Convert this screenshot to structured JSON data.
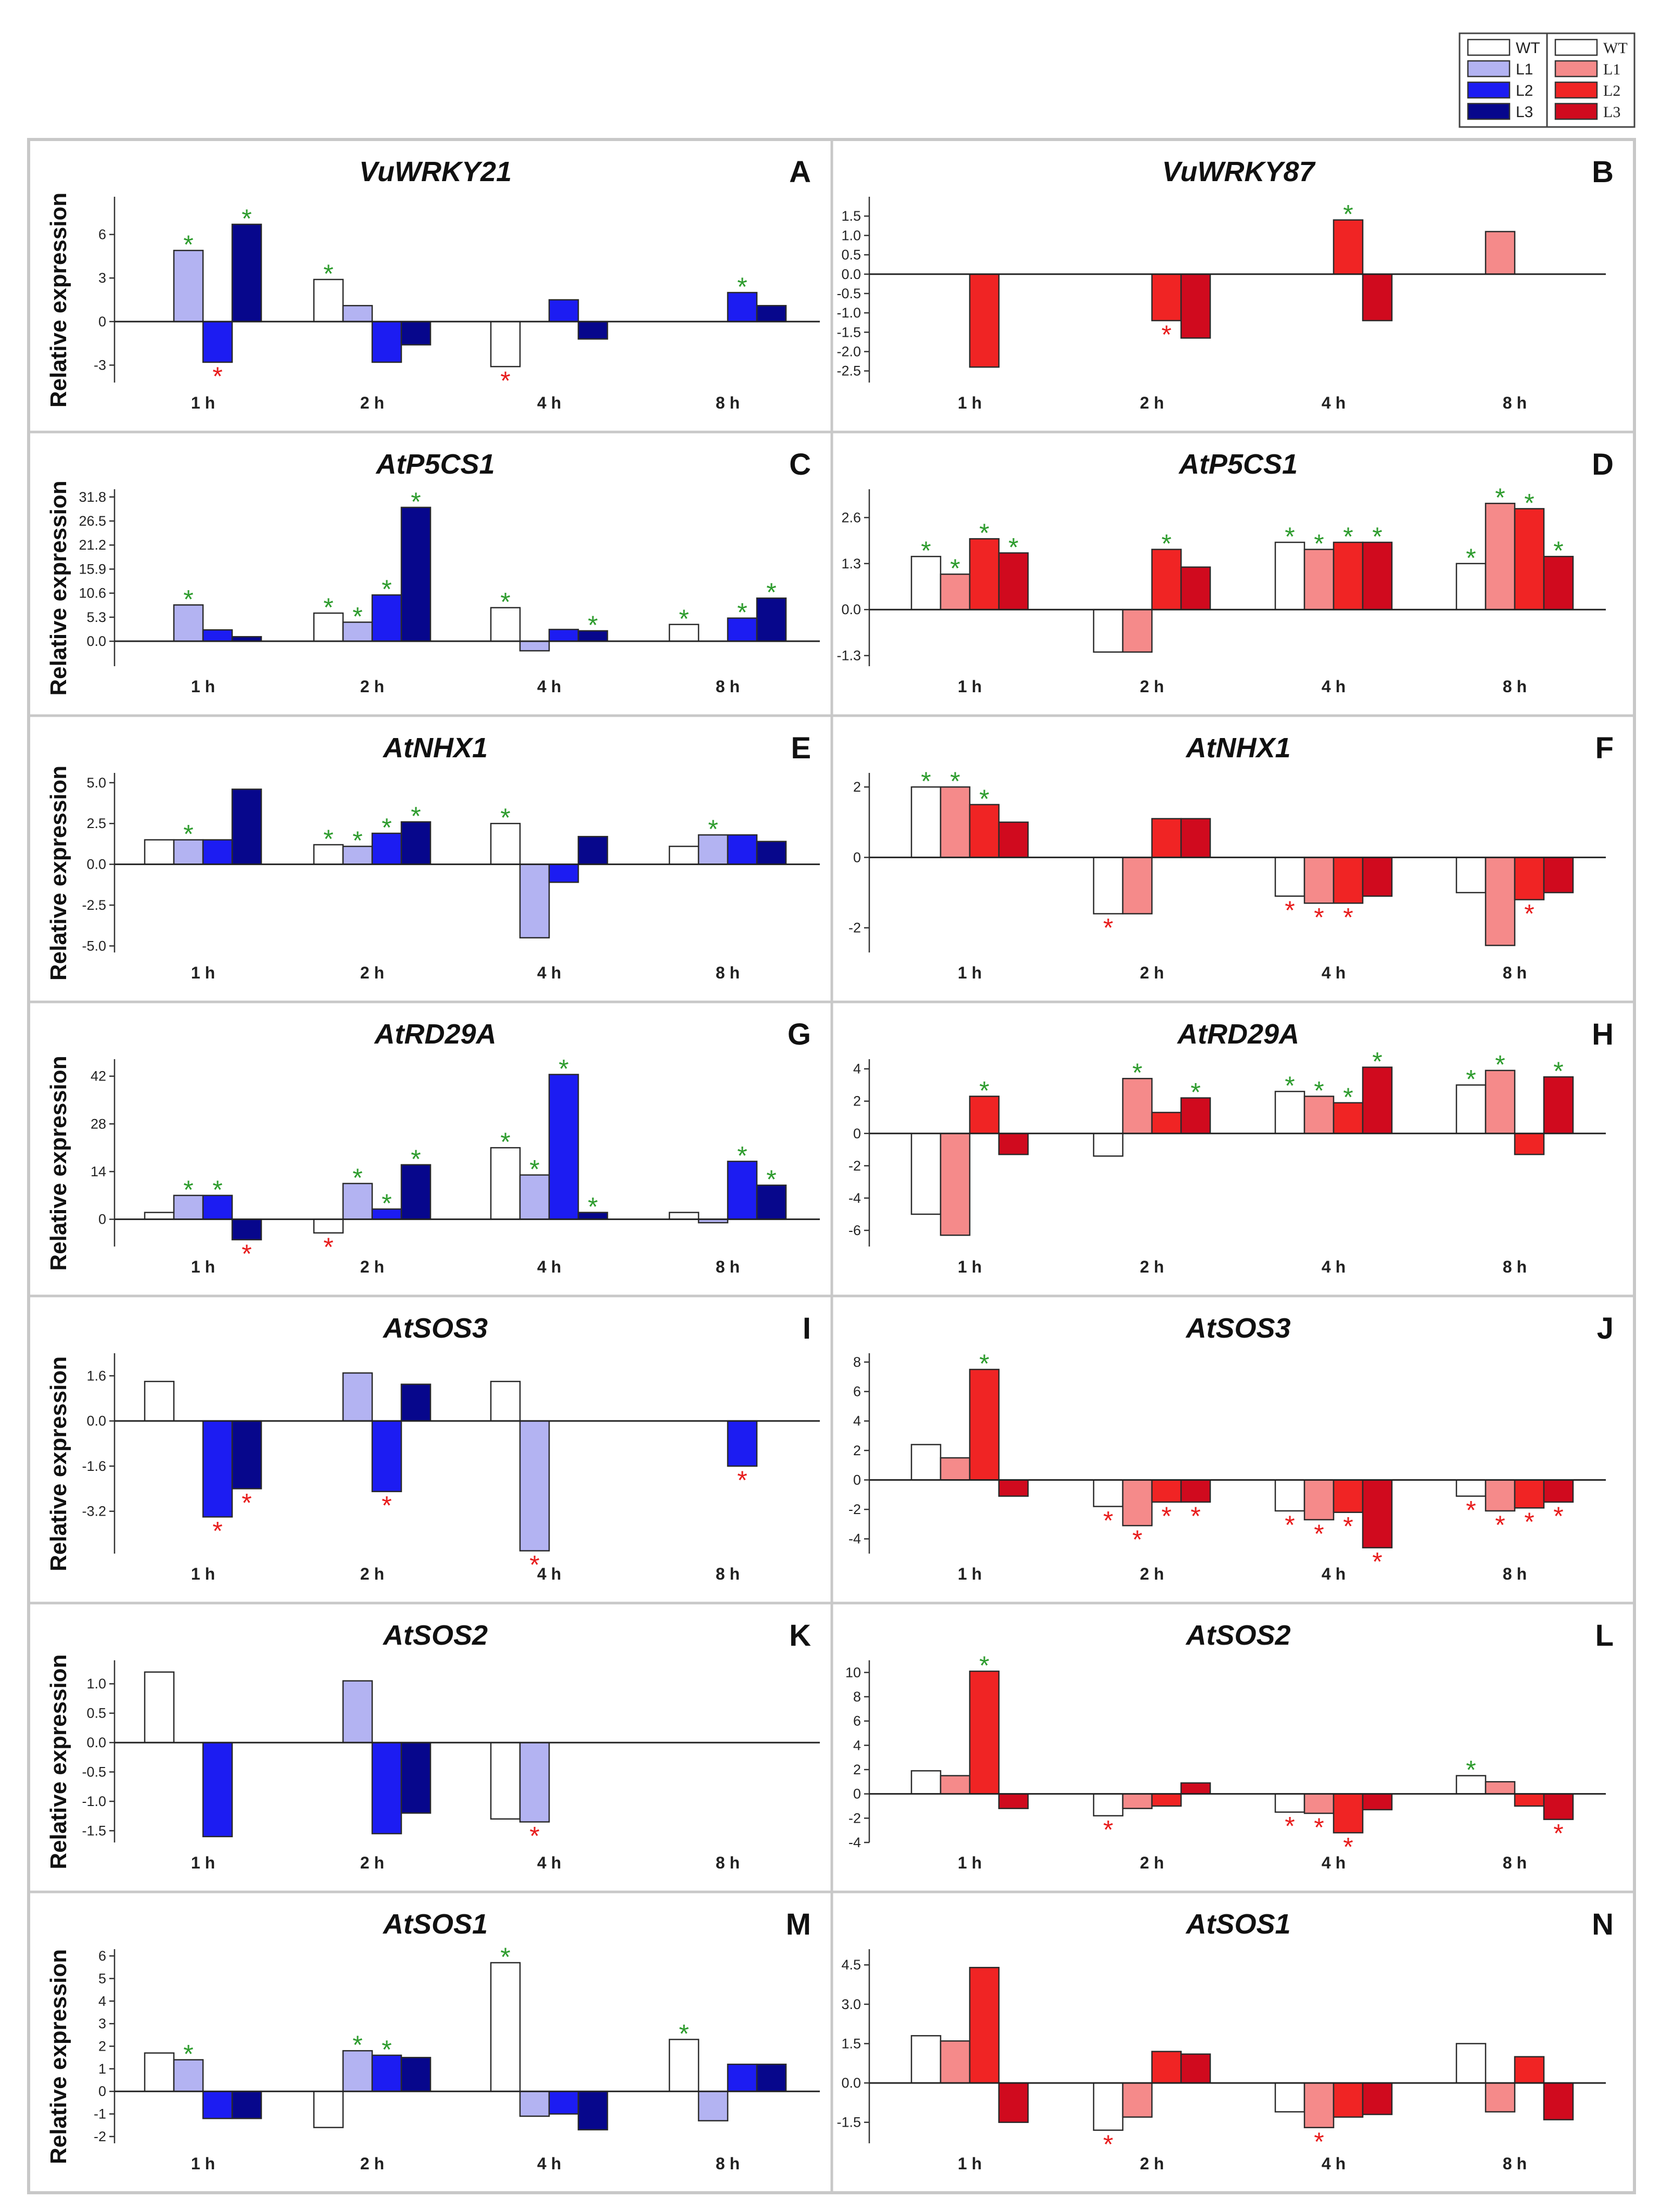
{
  "legends": {
    "blue": {
      "entries": [
        "WT",
        "L1",
        "L2",
        "L3"
      ],
      "colors": [
        "#ffffff",
        "#b3b3f2",
        "#1c1cf2",
        "#07078c"
      ]
    },
    "red": {
      "entries": [
        "WT",
        "L1",
        "L2",
        "L3"
      ],
      "colors": [
        "#ffffff",
        "#f58a8a",
        "#f02424",
        "#d00a1e"
      ]
    }
  },
  "y_axis_label": "Relative expression",
  "star_colors": {
    "green": "#2e9c2e",
    "red": "#e81c1c"
  },
  "chart_data": [
    {
      "id": "A",
      "type": "bar",
      "title": "VuWRKY21",
      "letter": "A",
      "palette": "blue",
      "side": "left",
      "categories": [
        "1 h",
        "2 h",
        "4 h",
        "8 h"
      ],
      "series_names": [
        "WT",
        "L1",
        "L2",
        "L3"
      ],
      "values": [
        [
          0,
          4.9,
          -2.8,
          6.7
        ],
        [
          2.9,
          1.1,
          -2.8,
          -1.6
        ],
        [
          -3.1,
          0,
          1.5,
          -1.2
        ],
        [
          0,
          0,
          2.0,
          1.1
        ]
      ],
      "stars": [
        [
          null,
          "green",
          "red",
          "green"
        ],
        [
          "green",
          null,
          null,
          null
        ],
        [
          "red",
          null,
          null,
          null
        ],
        [
          null,
          null,
          "green",
          null
        ]
      ],
      "yticks": [
        -3,
        0,
        3,
        6
      ],
      "yticklabels": [
        "-3",
        "0",
        "3",
        "6"
      ],
      "ylim": [
        -4.2,
        8.6
      ],
      "show_ylabel": true
    },
    {
      "id": "B",
      "type": "bar",
      "title": "VuWRKY87",
      "letter": "B",
      "palette": "red",
      "side": "right",
      "categories": [
        "1 h",
        "2 h",
        "4 h",
        "8 h"
      ],
      "series_names": [
        "WT",
        "L1",
        "L2",
        "L3"
      ],
      "values": [
        [
          0,
          0,
          -2.4,
          0
        ],
        [
          0,
          0,
          -1.2,
          -1.65
        ],
        [
          0,
          0,
          1.4,
          -1.2
        ],
        [
          0,
          1.1,
          0,
          0
        ]
      ],
      "stars": [
        [
          null,
          null,
          null,
          null
        ],
        [
          null,
          null,
          "red",
          null
        ],
        [
          null,
          null,
          "green",
          null
        ],
        [
          null,
          null,
          null,
          null
        ]
      ],
      "yticks": [
        -2.5,
        -2.0,
        -1.5,
        -1.0,
        -0.5,
        0.0,
        0.5,
        1.0,
        1.5
      ],
      "yticklabels": [
        "-2.5",
        "-2.0",
        "-1.5",
        "-1.0",
        "-0.5",
        "0.0",
        "0.5",
        "1.0",
        "1.5"
      ],
      "ylim": [
        -2.8,
        2.0
      ],
      "show_ylabel": false
    },
    {
      "id": "C",
      "type": "bar",
      "title": "AtP5CS1",
      "letter": "C",
      "palette": "blue",
      "side": "left",
      "categories": [
        "1 h",
        "2 h",
        "4 h",
        "8 h"
      ],
      "series_names": [
        "WT",
        "L1",
        "L2",
        "L3"
      ],
      "values": [
        [
          0,
          8.0,
          2.5,
          1.0
        ],
        [
          6.2,
          4.2,
          10.2,
          29.5
        ],
        [
          7.4,
          -2.1,
          2.6,
          2.3
        ],
        [
          3.7,
          0,
          5.1,
          9.5
        ]
      ],
      "stars": [
        [
          null,
          "green",
          null,
          null
        ],
        [
          "green",
          "green",
          "green",
          "green"
        ],
        [
          "green",
          null,
          null,
          "green"
        ],
        [
          "green",
          null,
          "green",
          "green"
        ]
      ],
      "yticks": [
        0.0,
        5.3,
        10.6,
        15.9,
        21.2,
        26.5,
        31.8
      ],
      "yticklabels": [
        "0.0",
        "5.3",
        "10.6",
        "15.9",
        "21.2",
        "26.5",
        "31.8"
      ],
      "ylim": [
        -5.5,
        33.5
      ],
      "show_ylabel": true
    },
    {
      "id": "D",
      "type": "bar",
      "title": "AtP5CS1",
      "letter": "D",
      "palette": "red",
      "side": "right",
      "categories": [
        "1 h",
        "2 h",
        "4 h",
        "8 h"
      ],
      "series_names": [
        "WT",
        "L1",
        "L2",
        "L3"
      ],
      "values": [
        [
          1.5,
          1.0,
          2.0,
          1.6
        ],
        [
          -1.2,
          -1.2,
          1.7,
          1.2
        ],
        [
          1.9,
          1.7,
          1.9,
          1.9
        ],
        [
          1.3,
          3.0,
          2.85,
          1.5
        ]
      ],
      "stars": [
        [
          "green",
          "green",
          "green",
          "green"
        ],
        [
          null,
          null,
          "green",
          null
        ],
        [
          "green",
          "green",
          "green",
          "green"
        ],
        [
          "green",
          "green",
          "green",
          "green"
        ]
      ],
      "yticks": [
        -1.3,
        0.0,
        1.3,
        2.6
      ],
      "yticklabels": [
        "-1.3",
        "0.0",
        "1.3",
        "2.6"
      ],
      "ylim": [
        -1.6,
        3.4
      ],
      "show_ylabel": false
    },
    {
      "id": "E",
      "type": "bar",
      "title": "AtNHX1",
      "letter": "E",
      "palette": "blue",
      "side": "left",
      "categories": [
        "1 h",
        "2 h",
        "4 h",
        "8 h"
      ],
      "series_names": [
        "WT",
        "L1",
        "L2",
        "L3"
      ],
      "values": [
        [
          1.5,
          1.5,
          1.5,
          4.6
        ],
        [
          1.2,
          1.1,
          1.9,
          2.6
        ],
        [
          2.5,
          -4.5,
          -1.1,
          1.7
        ],
        [
          1.1,
          1.8,
          1.8,
          1.4
        ]
      ],
      "stars": [
        [
          null,
          "green",
          null,
          null
        ],
        [
          "green",
          "green",
          "green",
          "green"
        ],
        [
          "green",
          null,
          null,
          null
        ],
        [
          null,
          "green",
          null,
          null
        ]
      ],
      "yticks": [
        -5.0,
        -2.5,
        0.0,
        2.5,
        5.0
      ],
      "yticklabels": [
        "-5.0",
        "-2.5",
        "0.0",
        "2.5",
        "5.0"
      ],
      "ylim": [
        -5.4,
        5.6
      ],
      "show_ylabel": true
    },
    {
      "id": "F",
      "type": "bar",
      "title": "AtNHX1",
      "letter": "F",
      "palette": "red",
      "side": "right",
      "categories": [
        "1 h",
        "2 h",
        "4 h",
        "8 h"
      ],
      "series_names": [
        "WT",
        "L1",
        "L2",
        "L3"
      ],
      "values": [
        [
          2.0,
          2.0,
          1.5,
          1.0
        ],
        [
          -1.6,
          -1.6,
          1.1,
          1.1
        ],
        [
          -1.1,
          -1.3,
          -1.3,
          -1.1
        ],
        [
          -1.0,
          -2.5,
          -1.2,
          -1.0
        ]
      ],
      "stars": [
        [
          "green",
          "green",
          "green",
          null
        ],
        [
          "red",
          null,
          null,
          null
        ],
        [
          "red",
          "red",
          "red",
          null
        ],
        [
          null,
          null,
          "red",
          null
        ]
      ],
      "yticks": [
        -2,
        0,
        2
      ],
      "yticklabels": [
        "-2",
        "0",
        "2"
      ],
      "ylim": [
        -2.7,
        2.4
      ],
      "show_ylabel": false
    },
    {
      "id": "G",
      "type": "bar",
      "title": "AtRD29A",
      "letter": "G",
      "palette": "blue",
      "side": "left",
      "categories": [
        "1 h",
        "2 h",
        "4 h",
        "8 h"
      ],
      "series_names": [
        "WT",
        "L1",
        "L2",
        "L3"
      ],
      "values": [
        [
          2.0,
          7.0,
          7.0,
          -6.0
        ],
        [
          -4.0,
          10.5,
          3.0,
          16.0
        ],
        [
          21.0,
          13.0,
          42.5,
          2.0
        ],
        [
          2.0,
          -1.0,
          17.0,
          10.0
        ]
      ],
      "stars": [
        [
          null,
          "green",
          "green",
          "red"
        ],
        [
          "red",
          "green",
          "green",
          "green"
        ],
        [
          "green",
          "green",
          "green",
          "green"
        ],
        [
          null,
          null,
          "green",
          "green"
        ]
      ],
      "yticks": [
        0,
        14,
        28,
        42
      ],
      "yticklabels": [
        "0",
        "14",
        "28",
        "42"
      ],
      "ylim": [
        -8,
        47
      ],
      "show_ylabel": true
    },
    {
      "id": "H",
      "type": "bar",
      "title": "AtRD29A",
      "letter": "H",
      "palette": "red",
      "side": "right",
      "categories": [
        "1 h",
        "2 h",
        "4 h",
        "8 h"
      ],
      "series_names": [
        "WT",
        "L1",
        "L2",
        "L3"
      ],
      "values": [
        [
          -5.0,
          -6.3,
          2.3,
          -1.3
        ],
        [
          -1.4,
          3.4,
          1.3,
          2.2
        ],
        [
          2.6,
          2.3,
          1.9,
          4.1
        ],
        [
          3.0,
          3.9,
          -1.3,
          3.5
        ]
      ],
      "stars": [
        [
          null,
          null,
          "green",
          null
        ],
        [
          null,
          "green",
          null,
          "green"
        ],
        [
          "green",
          "green",
          "green",
          "green"
        ],
        [
          "green",
          "green",
          null,
          "green"
        ]
      ],
      "yticks": [
        -6,
        -4,
        -2,
        0,
        2,
        4
      ],
      "yticklabels": [
        "-6",
        "-4",
        "-2",
        "0",
        "2",
        "4"
      ],
      "ylim": [
        -7.0,
        4.6
      ],
      "show_ylabel": false
    },
    {
      "id": "I",
      "type": "bar",
      "title": "AtSOS3",
      "letter": "I",
      "palette": "blue",
      "side": "left",
      "categories": [
        "1 h",
        "2 h",
        "4 h",
        "8 h"
      ],
      "series_names": [
        "WT",
        "L1",
        "L2",
        "L3"
      ],
      "values": [
        [
          1.4,
          0,
          -3.4,
          -2.4
        ],
        [
          0,
          1.7,
          -2.5,
          1.3
        ],
        [
          1.4,
          -4.6,
          0,
          0
        ],
        [
          0,
          0,
          -1.6,
          0
        ]
      ],
      "stars": [
        [
          null,
          null,
          "red",
          "red"
        ],
        [
          null,
          null,
          "red",
          null
        ],
        [
          null,
          "red",
          null,
          null
        ],
        [
          null,
          null,
          "red",
          null
        ]
      ],
      "yticks": [
        -3.2,
        -1.6,
        0.0,
        1.6
      ],
      "yticklabels": [
        "-3.2",
        "-1.6",
        "0.0",
        "1.6"
      ],
      "ylim": [
        -4.7,
        2.4
      ],
      "show_ylabel": true
    },
    {
      "id": "J",
      "type": "bar",
      "title": "AtSOS3",
      "letter": "J",
      "palette": "red",
      "side": "right",
      "categories": [
        "1 h",
        "2 h",
        "4 h",
        "8 h"
      ],
      "series_names": [
        "WT",
        "L1",
        "L2",
        "L3"
      ],
      "values": [
        [
          2.4,
          1.5,
          7.5,
          -1.1
        ],
        [
          -1.8,
          -3.1,
          -1.5,
          -1.5
        ],
        [
          -2.1,
          -2.7,
          -2.2,
          -4.6
        ],
        [
          -1.1,
          -2.1,
          -1.9,
          -1.5
        ]
      ],
      "stars": [
        [
          null,
          null,
          "green",
          null
        ],
        [
          "red",
          "red",
          "red",
          "red"
        ],
        [
          "red",
          "red",
          "red",
          "red"
        ],
        [
          "red",
          "red",
          "red",
          "red"
        ]
      ],
      "yticks": [
        -4,
        -2,
        0,
        2,
        4,
        6,
        8
      ],
      "yticklabels": [
        "-4",
        "-2",
        "0",
        "2",
        "4",
        "6",
        "8"
      ],
      "ylim": [
        -5.0,
        8.6
      ],
      "show_ylabel": false
    },
    {
      "id": "K",
      "type": "bar",
      "title": "AtSOS2",
      "letter": "K",
      "palette": "blue",
      "side": "left",
      "categories": [
        "1 h",
        "2 h",
        "4 h",
        "8 h"
      ],
      "series_names": [
        "WT",
        "L1",
        "L2",
        "L3"
      ],
      "values": [
        [
          1.2,
          0,
          -1.6,
          0
        ],
        [
          0,
          1.05,
          -1.55,
          -1.2
        ],
        [
          -1.3,
          -1.35,
          0,
          0
        ],
        [
          0,
          0,
          0,
          0
        ]
      ],
      "stars": [
        [
          null,
          null,
          null,
          null
        ],
        [
          null,
          null,
          null,
          null
        ],
        [
          null,
          "red",
          null,
          null
        ],
        [
          null,
          null,
          null,
          null
        ]
      ],
      "yticks": [
        -1.5,
        -1.0,
        -0.5,
        0.0,
        0.5,
        1.0
      ],
      "yticklabels": [
        "-1.5",
        "-1.0",
        "-0.5",
        "0.0",
        "0.5",
        "1.0"
      ],
      "ylim": [
        -1.7,
        1.4
      ],
      "show_ylabel": true
    },
    {
      "id": "L",
      "type": "bar",
      "title": "AtSOS2",
      "letter": "L",
      "palette": "red",
      "side": "right",
      "categories": [
        "1 h",
        "2 h",
        "4 h",
        "8 h"
      ],
      "series_names": [
        "WT",
        "L1",
        "L2",
        "L3"
      ],
      "values": [
        [
          1.9,
          1.5,
          10.1,
          -1.2
        ],
        [
          -1.8,
          -1.2,
          -1.0,
          0.9
        ],
        [
          -1.5,
          -1.6,
          -3.2,
          -1.3
        ],
        [
          1.5,
          1.0,
          -1.0,
          -2.1
        ]
      ],
      "stars": [
        [
          null,
          null,
          "green",
          null
        ],
        [
          "red",
          null,
          null,
          null
        ],
        [
          "red",
          "red",
          "red",
          null
        ],
        [
          "green",
          null,
          null,
          "red"
        ]
      ],
      "yticks": [
        -4,
        -2,
        0,
        2,
        4,
        6,
        8,
        10
      ],
      "yticklabels": [
        "-4",
        "-2",
        "0",
        "2",
        "4",
        "6",
        "8",
        "10"
      ],
      "ylim": [
        -4.0,
        11.0
      ],
      "show_ylabel": false
    },
    {
      "id": "M",
      "type": "bar",
      "title": "AtSOS1",
      "letter": "M",
      "palette": "blue",
      "side": "left",
      "categories": [
        "1 h",
        "2 h",
        "4 h",
        "8 h"
      ],
      "series_names": [
        "WT",
        "L1",
        "L2",
        "L3"
      ],
      "values": [
        [
          1.7,
          1.4,
          -1.2,
          -1.2
        ],
        [
          -1.6,
          1.8,
          1.6,
          1.5
        ],
        [
          5.7,
          -1.1,
          -1.0,
          -1.7
        ],
        [
          2.3,
          -1.3,
          1.2,
          1.2
        ]
      ],
      "stars": [
        [
          null,
          "green",
          null,
          null
        ],
        [
          null,
          "green",
          "green",
          null
        ],
        [
          "green",
          null,
          null,
          null
        ],
        [
          "green",
          null,
          null,
          null
        ]
      ],
      "yticks": [
        -2,
        -1,
        0,
        1,
        2,
        3,
        4,
        5,
        6
      ],
      "yticklabels": [
        "-2",
        "-1",
        "0",
        "1",
        "2",
        "3",
        "4",
        "5",
        "6"
      ],
      "ylim": [
        -2.3,
        6.3
      ],
      "show_ylabel": true
    },
    {
      "id": "N",
      "type": "bar",
      "title": "AtSOS1",
      "letter": "N",
      "palette": "red",
      "side": "right",
      "categories": [
        "1 h",
        "2 h",
        "4 h",
        "8 h"
      ],
      "series_names": [
        "WT",
        "L1",
        "L2",
        "L3"
      ],
      "values": [
        [
          1.8,
          1.6,
          4.4,
          -1.5
        ],
        [
          -1.8,
          -1.3,
          1.2,
          1.1
        ],
        [
          -1.1,
          -1.7,
          -1.3,
          -1.2
        ],
        [
          1.5,
          -1.1,
          1.0,
          -1.4
        ]
      ],
      "stars": [
        [
          null,
          null,
          null,
          null
        ],
        [
          "red",
          null,
          null,
          null
        ],
        [
          null,
          "red",
          null,
          null
        ],
        [
          null,
          null,
          null,
          null
        ]
      ],
      "yticks": [
        -1.5,
        0.0,
        1.5,
        3.0,
        4.5
      ],
      "yticklabels": [
        "-1.5",
        "0.0",
        "1.5",
        "3.0",
        "4.5"
      ],
      "ylim": [
        -2.3,
        5.1
      ],
      "show_ylabel": false
    }
  ]
}
